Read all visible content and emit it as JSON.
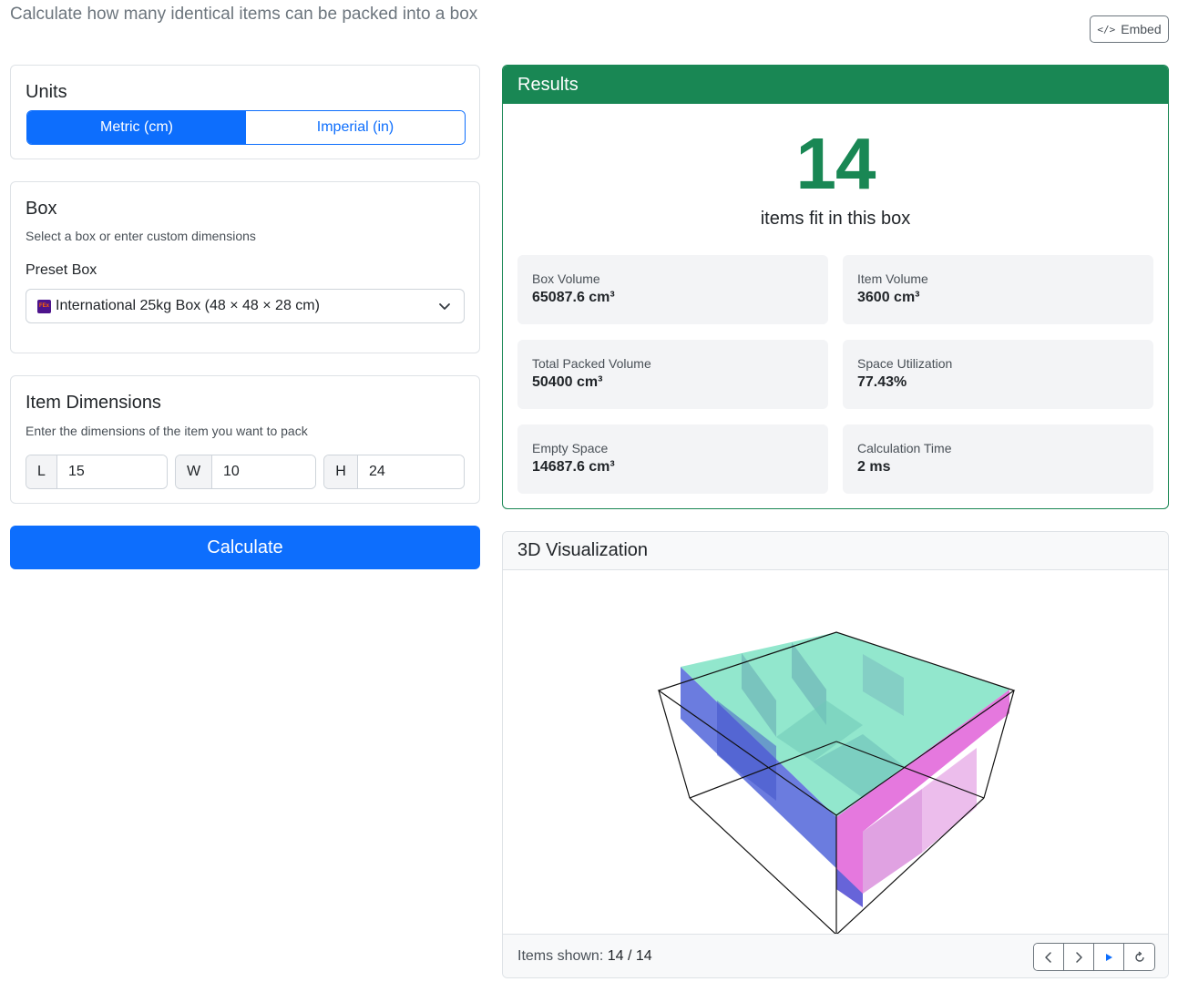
{
  "page": {
    "subtitle": "Calculate how many identical items can be packed into a box",
    "embed_label": "Embed"
  },
  "units": {
    "title": "Units",
    "options": [
      "Metric (cm)",
      "Imperial (in)"
    ],
    "selected": "Metric (cm)"
  },
  "box": {
    "title": "Box",
    "subtitle": "Select a box or enter custom dimensions",
    "preset_label": "Preset Box",
    "preset_value": "International 25kg Box (48 × 48 × 28 cm)",
    "preset_logo_text": "FEx"
  },
  "item": {
    "title": "Item Dimensions",
    "subtitle": "Enter the dimensions of the item you want to pack",
    "dims": [
      {
        "label": "L",
        "value": "15"
      },
      {
        "label": "W",
        "value": "10"
      },
      {
        "label": "H",
        "value": "24"
      }
    ]
  },
  "calculate_label": "Calculate",
  "results": {
    "title": "Results",
    "count": "14",
    "count_label": "items fit in this box",
    "stats": [
      {
        "label": "Box Volume",
        "value": "65087.6 cm³"
      },
      {
        "label": "Item Volume",
        "value": "3600 cm³"
      },
      {
        "label": "Total Packed Volume",
        "value": "50400 cm³"
      },
      {
        "label": "Space Utilization",
        "value": "77.43%"
      },
      {
        "label": "Empty Space",
        "value": "14687.6 cm³"
      },
      {
        "label": "Calculation Time",
        "value": "2 ms"
      }
    ]
  },
  "viz": {
    "title": "3D Visualization",
    "items_shown_label": "Items shown:",
    "items_shown_value": "14 / 14",
    "colors": {
      "top": "#7fe3c4",
      "left": "#4a5fd8",
      "right": "#e060d8"
    }
  },
  "colors": {
    "primary": "#0d6efd",
    "success": "#198754"
  }
}
